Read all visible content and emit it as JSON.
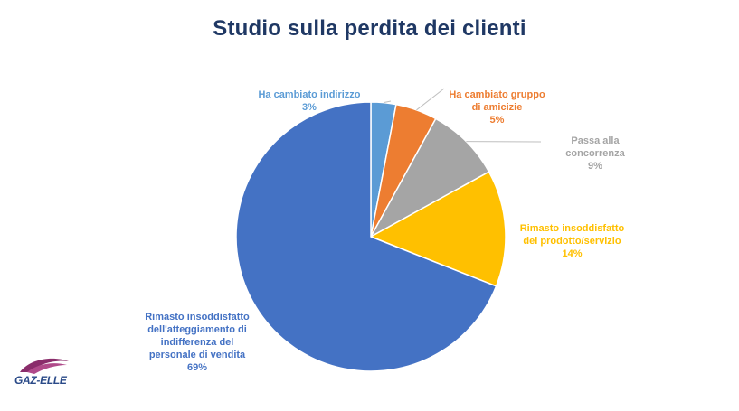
{
  "chart_data": {
    "type": "pie",
    "title": "Studio sulla perdita dei clienti",
    "slices": [
      {
        "label": "Ha cambiato indirizzo",
        "value": 3,
        "value_label": "3%",
        "color": "#5b9bd5"
      },
      {
        "label": "Ha cambiato gruppo di amicizie",
        "value": 5,
        "value_label": "5%",
        "color": "#ed7d31"
      },
      {
        "label": "Passa alla concorrenza",
        "value": 9,
        "value_label": "9%",
        "color": "#a5a5a5"
      },
      {
        "label": "Rimasto insoddisfatto del prodotto/servizio",
        "value": 14,
        "value_label": "14%",
        "color": "#ffc000"
      },
      {
        "label": "Rimasto insoddisfatto dell'atteggiamento di indifferenza del personale di vendita",
        "value": 69,
        "value_label": "69%",
        "color": "#4472c4"
      }
    ],
    "label_colors": [
      "#5b9bd5",
      "#ed7d31",
      "#a5a5a5",
      "#ffc000",
      "#4472c4"
    ],
    "legend": "none"
  },
  "logo": {
    "text": "GAZ-ELLE",
    "color": "#2a4a88",
    "accent": "#8a2d6b"
  }
}
